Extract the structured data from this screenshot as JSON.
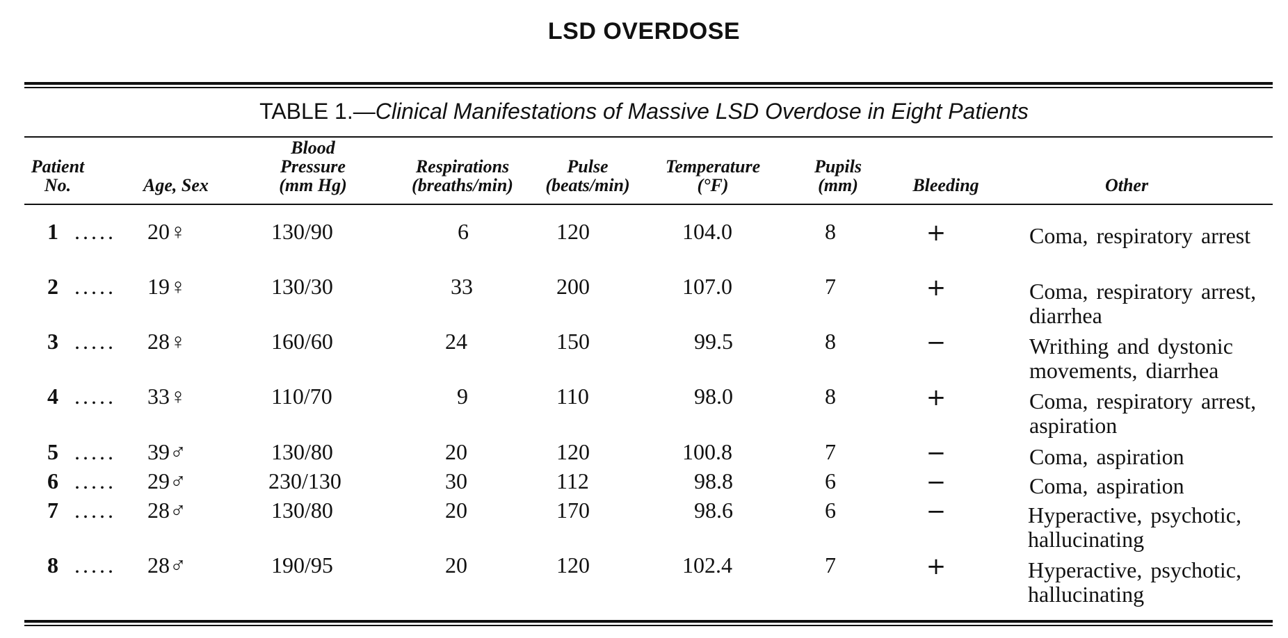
{
  "page": {
    "title": "LSD OVERDOSE"
  },
  "table": {
    "label": "TABLE 1.",
    "caption": "Clinical Manifestations of Massive LSD Overdose in Eight Patients",
    "headers": {
      "patient": "Patient\nNo.",
      "age_sex": "Age, Sex",
      "bp": "Blood\nPressure\n(mm Hg)",
      "resp": "Respirations\n(breaths/min)",
      "pulse": "Pulse\n(beats/min)",
      "temp": "Temperature\n(°F)",
      "pupils": "Pupils\n(mm)",
      "bleeding": "Bleeding",
      "other": "Other"
    },
    "rows": [
      {
        "no": "1",
        "leader": ".....",
        "age_sex": "20♀",
        "bp": "130/90",
        "resp": "6",
        "pulse": "120",
        "temp": "104.0",
        "pupils": "8",
        "bleeding": "+",
        "other": "Coma, respiratory arrest"
      },
      {
        "no": "2",
        "leader": ".....",
        "age_sex": "19♀",
        "bp": "130/30",
        "resp": "33",
        "pulse": "200",
        "temp": "107.0",
        "pupils": "7",
        "bleeding": "+",
        "other": "Coma, respiratory arrest, diarrhea"
      },
      {
        "no": "3",
        "leader": ".....",
        "age_sex": "28♀",
        "bp": "160/60",
        "resp": "24",
        "pulse": "150",
        "temp": "99.5",
        "pupils": "8",
        "bleeding": "−",
        "other": "Writhing and dystonic movements, diarrhea"
      },
      {
        "no": "4",
        "leader": ".....",
        "age_sex": "33♀",
        "bp": "110/70",
        "resp": "9",
        "pulse": "110",
        "temp": "98.0",
        "pupils": "8",
        "bleeding": "+",
        "other": "Coma, respiratory arrest, aspiration"
      },
      {
        "no": "5",
        "leader": ".....",
        "age_sex": "39♂",
        "bp": "130/80",
        "resp": "20",
        "pulse": "120",
        "temp": "100.8",
        "pupils": "7",
        "bleeding": "−",
        "other": "Coma, aspiration"
      },
      {
        "no": "6",
        "leader": ".....",
        "age_sex": "29♂",
        "bp": "230/130",
        "resp": "30",
        "pulse": "112",
        "temp": "98.8",
        "pupils": "6",
        "bleeding": "−",
        "other": "Coma, aspiration"
      },
      {
        "no": "7",
        "leader": ".....",
        "age_sex": "28♂",
        "bp": "130/80",
        "resp": "20",
        "pulse": "170",
        "temp": "98.6",
        "pupils": "6",
        "bleeding": "−",
        "other": "Hyperactive, psychotic, hallucinating"
      },
      {
        "no": "8",
        "leader": ".....",
        "age_sex": "28♂",
        "bp": "190/95",
        "resp": "20",
        "pulse": "120",
        "temp": "102.4",
        "pupils": "7",
        "bleeding": "+",
        "other": "Hyperactive, psychotic, hallucinating"
      }
    ]
  }
}
